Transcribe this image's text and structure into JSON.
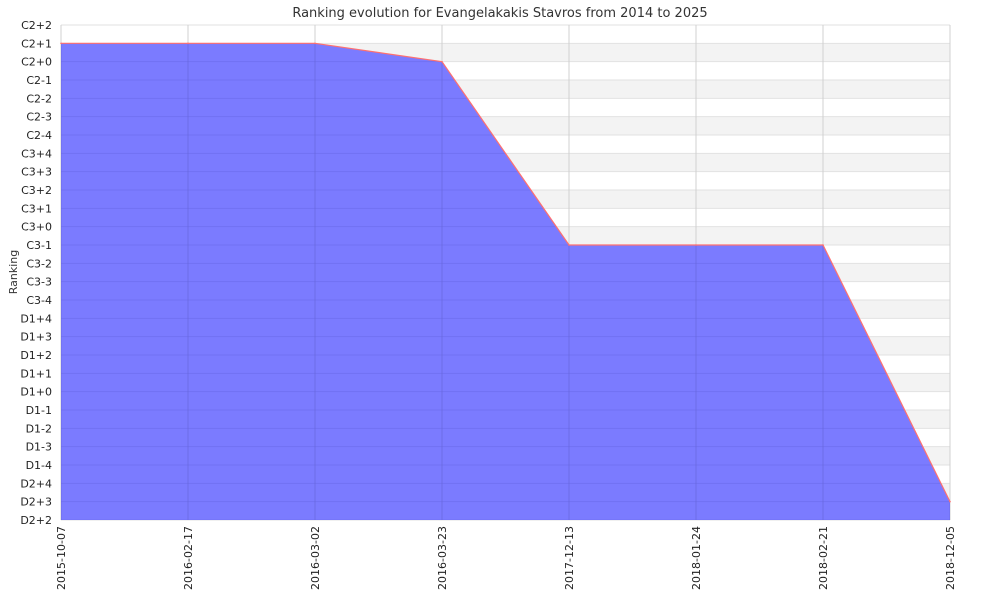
{
  "chart_data": {
    "type": "area",
    "title": "Ranking evolution for Evangelakakis Stavros from 2014 to 2025",
    "xlabel": "",
    "ylabel": "Ranking",
    "y_categories": [
      "D2+2",
      "D2+3",
      "D2+4",
      "D1-4",
      "D1-3",
      "D1-2",
      "D1-1",
      "D1+0",
      "D1+1",
      "D1+2",
      "D1+3",
      "D1+4",
      "C3-4",
      "C3-3",
      "C3-2",
      "C3-1",
      "C3+0",
      "C3+1",
      "C3+2",
      "C3+3",
      "C3+4",
      "C2-4",
      "C2-3",
      "C2-2",
      "C2-1",
      "C2+0",
      "C2+1",
      "C2+2"
    ],
    "x": [
      "2015-10-07",
      "2016-02-17",
      "2016-03-02",
      "2016-03-23",
      "2017-12-13",
      "2018-01-24",
      "2018-02-21",
      "2018-12-05"
    ],
    "series": [
      {
        "values": [
          "C2+1",
          "C2+1",
          "C2+1",
          "C2+0",
          "C3-1",
          "C3-1",
          "C3-1",
          "D2+3"
        ]
      }
    ],
    "grid": true,
    "colors": {
      "fill": "#7b7bff",
      "line": "#ff7070",
      "band": "#f3f3f3",
      "grid": "#d0d0d0"
    }
  }
}
